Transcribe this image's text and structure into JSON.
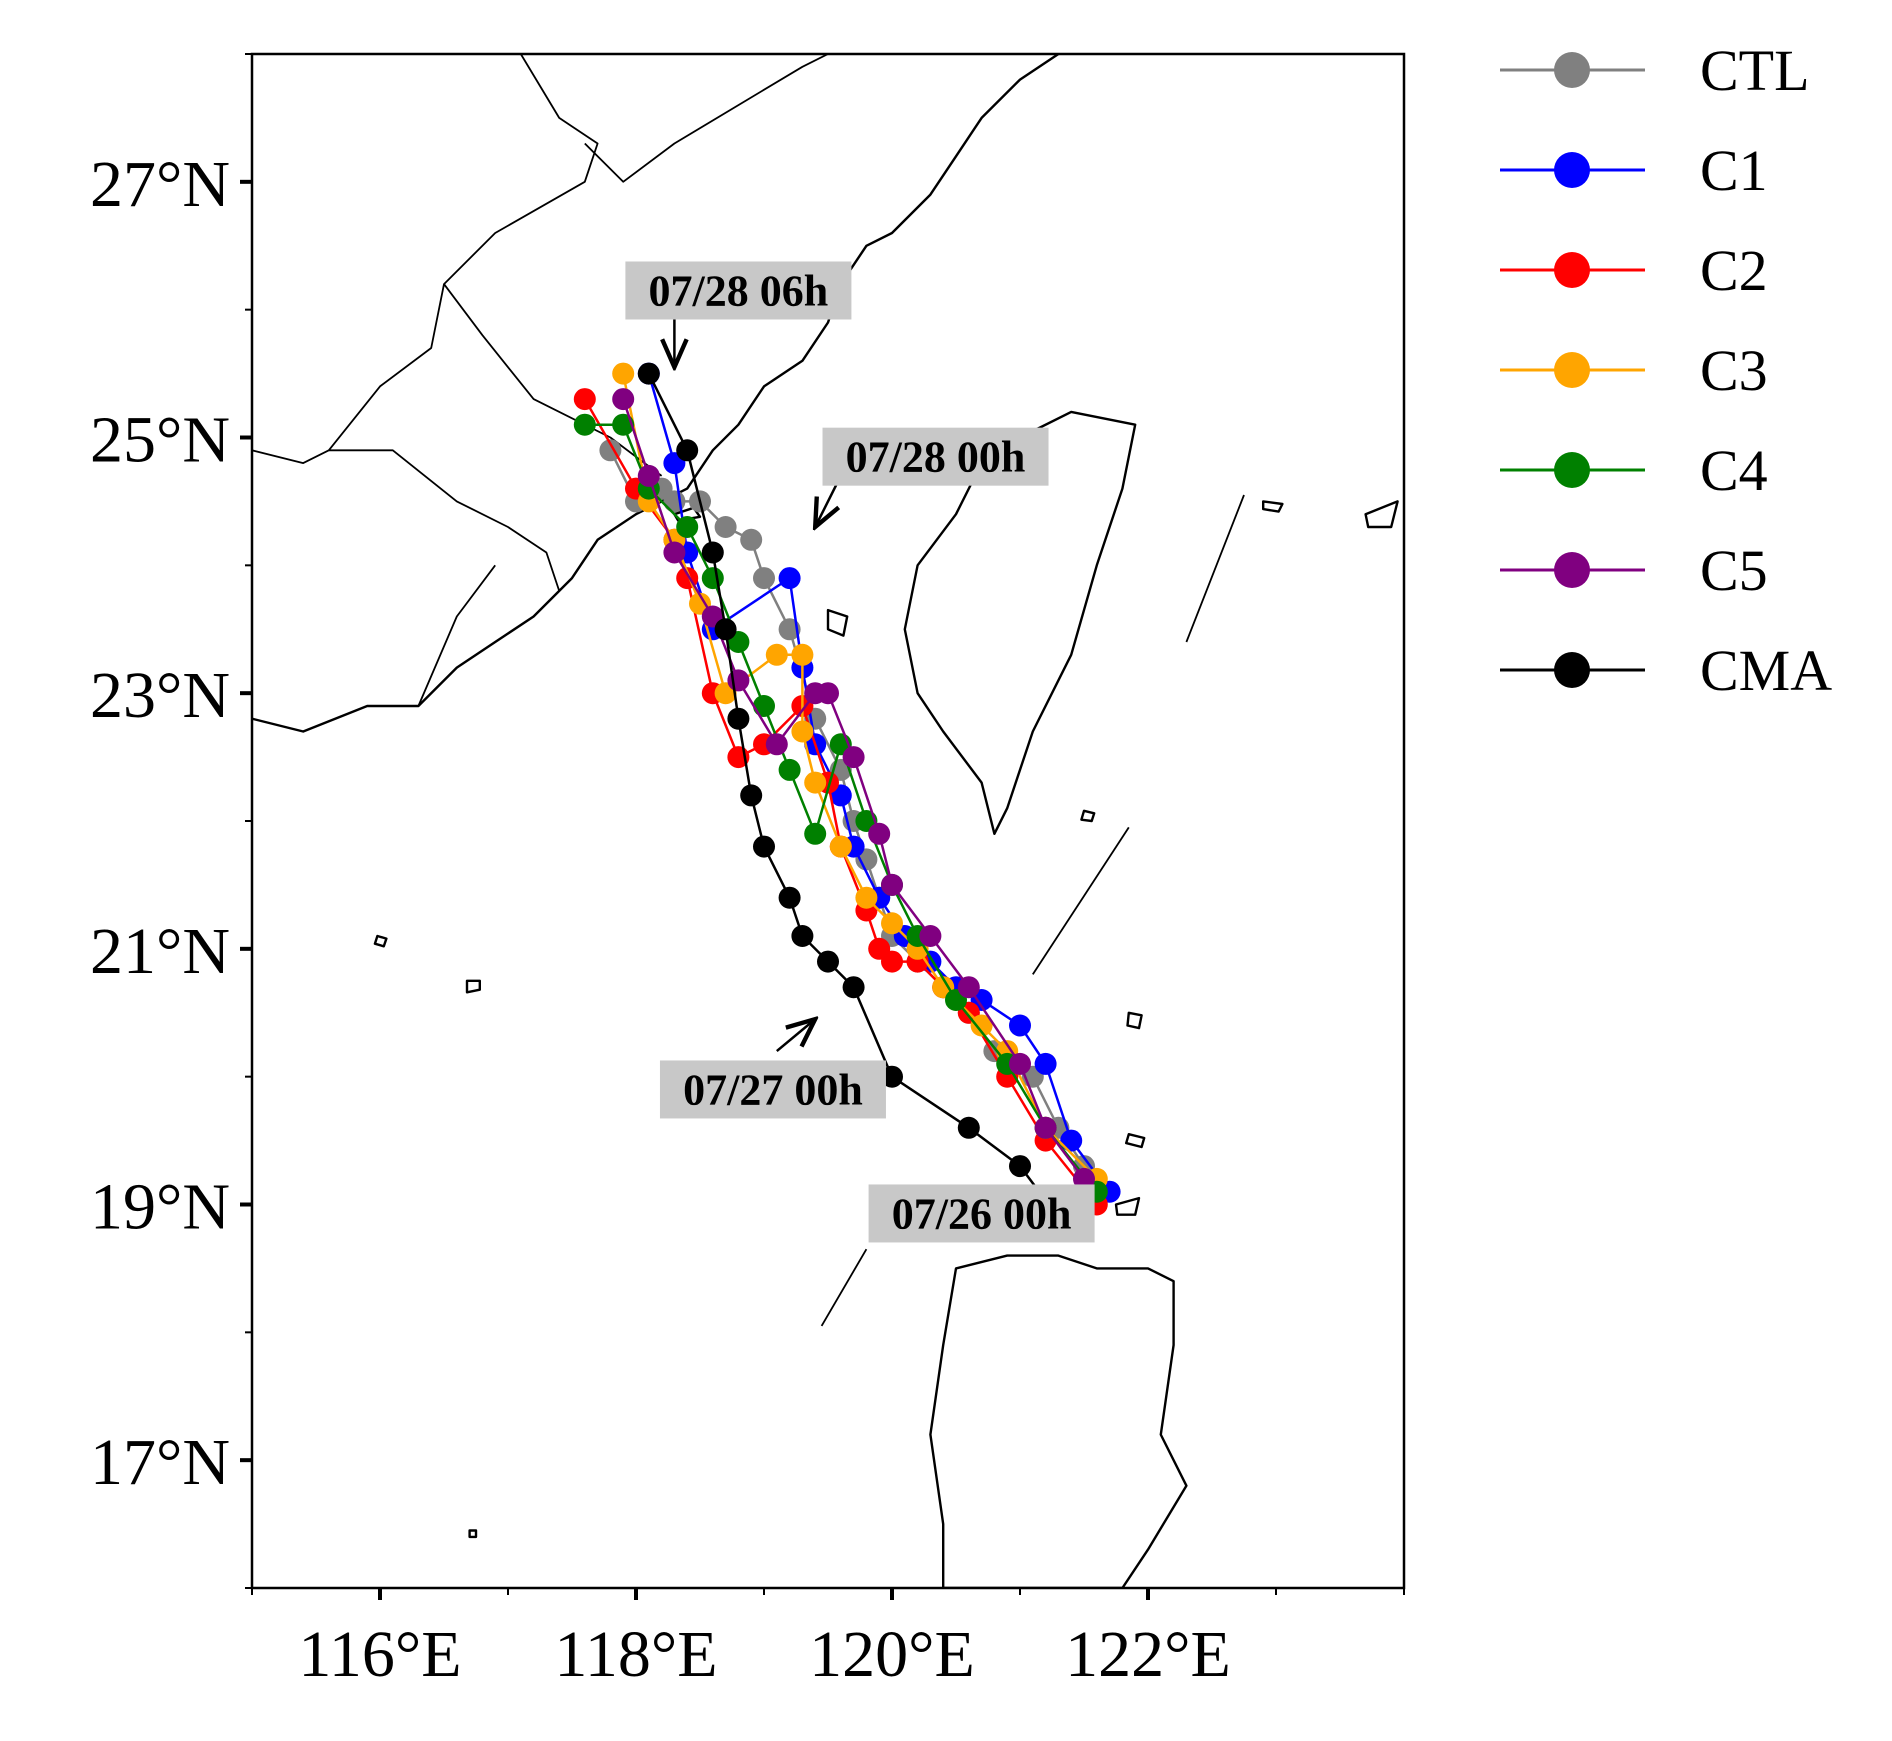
{
  "chart_data": {
    "type": "line",
    "xlim": [
      115,
      124
    ],
    "ylim": [
      16,
      28
    ],
    "x_ticks": [
      116,
      118,
      120,
      122
    ],
    "y_ticks": [
      17,
      19,
      21,
      23,
      25,
      27
    ],
    "x_tick_labels": [
      "116°E",
      "118°E",
      "120°E",
      "122°E"
    ],
    "y_tick_labels": [
      "17°N",
      "19°N",
      "21°N",
      "23°N",
      "25°N",
      "27°N"
    ],
    "legend_position": "outside-right-top",
    "series": [
      {
        "name": "CTL",
        "color": "#808080",
        "lon": [
          121.6,
          121.5,
          121.3,
          121.1,
          120.8,
          120.6,
          120.4,
          120.2,
          120.0,
          119.9,
          119.8,
          119.7,
          119.6,
          119.4,
          119.2,
          119.0,
          118.9,
          118.7,
          118.5,
          118.3,
          118.2,
          118.0,
          117.8
        ],
        "lat": [
          19.1,
          19.3,
          19.6,
          20.0,
          20.2,
          20.5,
          20.7,
          20.9,
          21.1,
          21.4,
          21.7,
          22.0,
          22.4,
          22.8,
          23.5,
          23.9,
          24.2,
          24.3,
          24.5,
          24.5,
          24.6,
          24.5,
          24.9
        ]
      },
      {
        "name": "C1",
        "color": "#0000ff",
        "lon": [
          121.7,
          121.4,
          121.2,
          121.0,
          120.7,
          120.5,
          120.3,
          120.1,
          119.9,
          119.7,
          119.6,
          119.4,
          119.3,
          119.2,
          118.6,
          118.4,
          118.3,
          118.1
        ],
        "lat": [
          19.1,
          19.5,
          20.1,
          20.4,
          20.6,
          20.7,
          20.9,
          21.1,
          21.4,
          21.8,
          22.2,
          22.6,
          23.2,
          23.9,
          23.5,
          24.1,
          24.8,
          25.5
        ]
      },
      {
        "name": "C2",
        "color": "#ff0000",
        "lon": [
          121.6,
          121.2,
          120.9,
          120.6,
          120.4,
          120.2,
          120.0,
          119.9,
          119.8,
          119.6,
          119.5,
          119.3,
          119.0,
          118.8,
          118.6,
          118.4,
          118.3,
          118.0,
          117.6
        ],
        "lat": [
          19.0,
          19.5,
          20.0,
          20.5,
          20.7,
          20.9,
          20.9,
          21.0,
          21.3,
          21.8,
          22.3,
          22.9,
          22.6,
          22.5,
          23.0,
          23.9,
          24.2,
          24.6,
          25.3
        ]
      },
      {
        "name": "C3",
        "color": "#ffa500",
        "lon": [
          121.6,
          121.2,
          120.9,
          120.7,
          120.4,
          120.2,
          120.0,
          119.8,
          119.6,
          119.4,
          119.3,
          119.3,
          119.1,
          118.7,
          118.5,
          118.3,
          118.1,
          117.9
        ],
        "lat": [
          19.2,
          19.6,
          20.2,
          20.4,
          20.7,
          21.0,
          21.2,
          21.4,
          21.8,
          22.3,
          22.7,
          23.3,
          23.3,
          23.0,
          23.7,
          24.2,
          24.5,
          25.5
        ]
      },
      {
        "name": "C4",
        "color": "#008000",
        "lon": [
          121.6,
          121.2,
          120.9,
          120.5,
          120.2,
          120.0,
          119.8,
          119.6,
          119.4,
          119.2,
          119.0,
          118.8,
          118.6,
          118.4,
          118.1,
          117.9,
          117.6
        ],
        "lat": [
          19.1,
          19.6,
          20.1,
          20.6,
          21.1,
          21.5,
          22.0,
          22.6,
          21.9,
          22.4,
          22.9,
          23.4,
          23.9,
          24.3,
          24.6,
          25.1,
          25.1
        ]
      },
      {
        "name": "C5",
        "color": "#800080",
        "lon": [
          121.5,
          121.2,
          121.0,
          120.6,
          120.3,
          120.0,
          119.9,
          119.7,
          119.5,
          119.4,
          119.1,
          118.8,
          118.6,
          118.3,
          118.1,
          117.9
        ],
        "lat": [
          19.2,
          19.6,
          20.1,
          20.7,
          21.1,
          21.5,
          21.9,
          22.5,
          23.0,
          23.0,
          22.6,
          23.1,
          23.6,
          24.1,
          24.7,
          25.3
        ]
      },
      {
        "name": "CMA",
        "color": "#000000",
        "lon": [
          121.3,
          121.0,
          120.6,
          120.0,
          119.7,
          119.5,
          119.3,
          119.2,
          119.0,
          118.9,
          118.8,
          118.7,
          118.6,
          118.4,
          118.1
        ],
        "lat": [
          18.9,
          19.3,
          19.6,
          20.0,
          20.7,
          20.9,
          21.1,
          21.4,
          21.8,
          22.2,
          22.8,
          23.5,
          24.1,
          24.9,
          25.5
        ]
      }
    ],
    "annotations": [
      {
        "text": "07/28 06h",
        "box": [
          118.8,
          26.15
        ],
        "arrow_from": [
          118.3,
          26.05
        ],
        "arrow_to": [
          118.3,
          25.55
        ]
      },
      {
        "text": "07/28 00h",
        "box": [
          120.34,
          24.85
        ],
        "arrow_from": [
          119.6,
          24.7
        ],
        "arrow_to": [
          119.4,
          24.3
        ]
      },
      {
        "text": "07/27 00h",
        "box": [
          119.07,
          19.9
        ],
        "arrow_from": [
          119.1,
          20.2
        ],
        "arrow_to": [
          119.4,
          20.45
        ]
      },
      {
        "text": "07/26 00h",
        "box": [
          120.7,
          18.93
        ],
        "arrow_from": [
          120.8,
          18.93
        ],
        "arrow_to": [
          121.1,
          18.9
        ]
      }
    ]
  }
}
